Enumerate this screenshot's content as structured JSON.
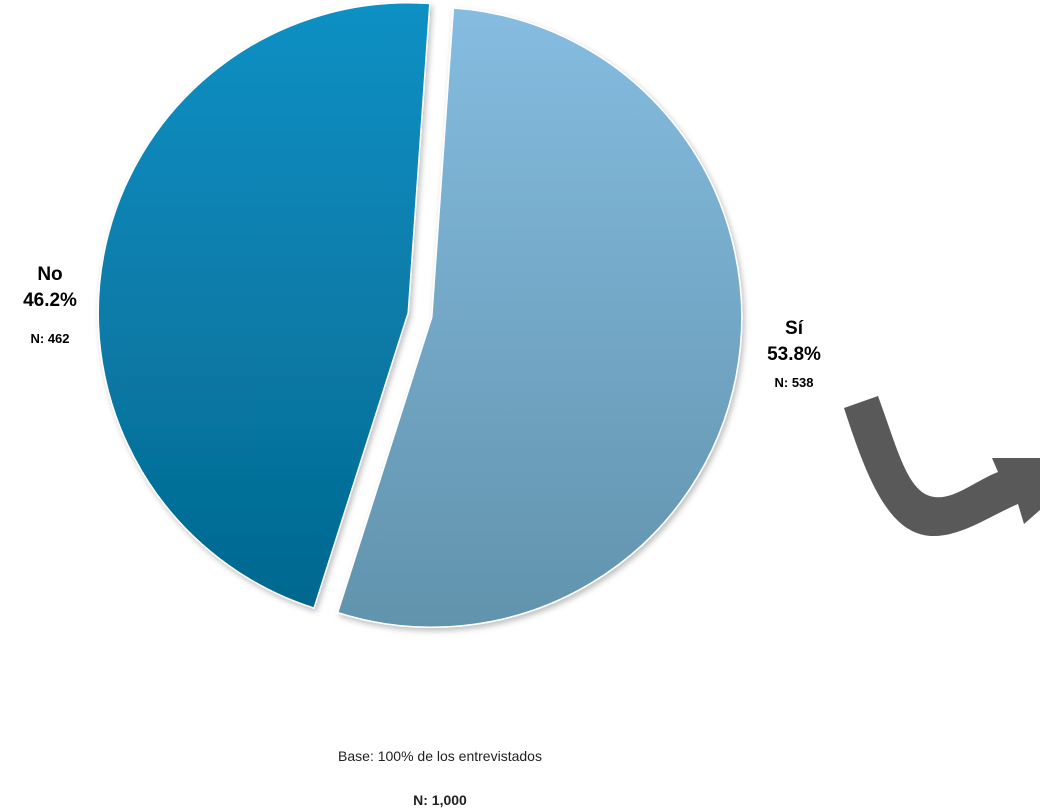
{
  "chart_data": {
    "type": "pie",
    "categories": [
      "Sí",
      "No"
    ],
    "values": [
      53.8,
      46.2
    ],
    "counts": [
      "N: 538",
      "N: 462"
    ],
    "value_labels": [
      "53.8%",
      "46.2%"
    ],
    "colors": [
      "#7fb2d3",
      "#0b84b4"
    ],
    "exploded": true
  },
  "labels": {
    "si": {
      "category": "Sí",
      "percent": "53.8%",
      "n": "N: 538"
    },
    "no": {
      "category": "No",
      "percent": "46.2%",
      "n": "N: 462"
    }
  },
  "footer": {
    "base": "Base: 100% de los entrevistados",
    "total": "N: 1,000"
  },
  "decoration": {
    "arrow_icon": "curved-arrow-right-icon",
    "arrow_color": "#595959"
  }
}
